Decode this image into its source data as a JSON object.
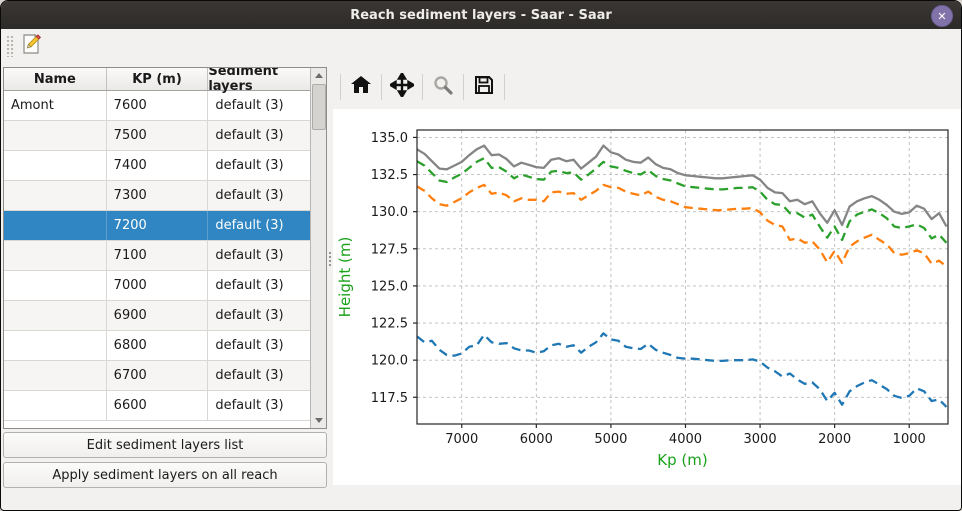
{
  "window": {
    "title": "Reach sediment layers - Saar - Saar",
    "close_glyph": "✕"
  },
  "main_toolbar": {
    "edit_icon": "edit-sediment-document"
  },
  "left_panel": {
    "table": {
      "columns": [
        "Name",
        "KP (m)",
        "Sediment layers"
      ],
      "rows": [
        {
          "name": "Amont",
          "kp": "7600",
          "layers": "default (3)"
        },
        {
          "name": "",
          "kp": "7500",
          "layers": "default (3)"
        },
        {
          "name": "",
          "kp": "7400",
          "layers": "default (3)"
        },
        {
          "name": "",
          "kp": "7300",
          "layers": "default (3)"
        },
        {
          "name": "",
          "kp": "7200",
          "layers": "default (3)"
        },
        {
          "name": "",
          "kp": "7100",
          "layers": "default (3)"
        },
        {
          "name": "",
          "kp": "7000",
          "layers": "default (3)"
        },
        {
          "name": "",
          "kp": "6900",
          "layers": "default (3)"
        },
        {
          "name": "",
          "kp": "6800",
          "layers": "default (3)"
        },
        {
          "name": "",
          "kp": "6700",
          "layers": "default (3)"
        },
        {
          "name": "",
          "kp": "6600",
          "layers": "default (3)"
        }
      ],
      "selected_index": 4
    },
    "buttons": [
      "Edit sediment layers list",
      "Apply sediment layers on all reach"
    ]
  },
  "plot_toolbar": {
    "icons": [
      "home",
      "pan",
      "zoom",
      "save"
    ]
  },
  "chart_data": {
    "type": "line",
    "xlabel": "Kp (m)",
    "ylabel": "Height (m)",
    "axis_label_color": "#1aa21a",
    "tick_color": "#1a1a1a",
    "x_inverted": true,
    "xlim": [
      7600,
      480
    ],
    "ylim": [
      115.7,
      135.5
    ],
    "xticks": [
      7000,
      6000,
      5000,
      4000,
      3000,
      2000,
      1000
    ],
    "yticks": [
      135.0,
      132.5,
      130.0,
      127.5,
      125.0,
      122.5,
      120.0,
      117.5
    ],
    "grid": {
      "on": true,
      "style": "dashed",
      "color": "#bbbbbb"
    },
    "x": [
      7600,
      7500,
      7400,
      7300,
      7200,
      7100,
      7000,
      6900,
      6800,
      6700,
      6600,
      6500,
      6400,
      6300,
      6200,
      6100,
      6000,
      5900,
      5800,
      5700,
      5600,
      5500,
      5400,
      5300,
      5200,
      5100,
      5000,
      4900,
      4800,
      4700,
      4600,
      4500,
      4400,
      4300,
      4200,
      4100,
      4000,
      3900,
      3800,
      3700,
      3600,
      3500,
      3400,
      3300,
      3200,
      3100,
      3000,
      2900,
      2800,
      2700,
      2600,
      2500,
      2400,
      2300,
      2200,
      2100,
      2000,
      1900,
      1800,
      1700,
      1600,
      1500,
      1400,
      1300,
      1200,
      1100,
      1000,
      900,
      800,
      700,
      600,
      500
    ],
    "series": [
      {
        "name": "grey-solid-line",
        "color": "#858585",
        "dash": "solid",
        "values": [
          134.2,
          133.9,
          133.4,
          132.9,
          132.85,
          133.1,
          133.35,
          133.8,
          134.2,
          134.45,
          133.8,
          133.85,
          133.55,
          133.05,
          133.3,
          133.15,
          133.0,
          132.95,
          133.5,
          133.6,
          133.4,
          133.5,
          132.9,
          133.3,
          133.7,
          134.45,
          134.0,
          133.85,
          133.5,
          133.35,
          133.3,
          133.65,
          133.2,
          132.95,
          132.85,
          132.6,
          132.45,
          132.4,
          132.35,
          132.3,
          132.25,
          132.25,
          132.3,
          132.35,
          132.4,
          132.45,
          132.15,
          131.6,
          131.3,
          131.25,
          130.7,
          130.8,
          130.5,
          130.7,
          129.9,
          129.25,
          130.1,
          129.1,
          130.35,
          130.7,
          130.9,
          131.05,
          130.8,
          130.45,
          130.0,
          129.85,
          129.95,
          130.4,
          130.2,
          129.5,
          129.9,
          129.0
        ]
      },
      {
        "name": "green-dashed-line",
        "color": "#2ca02c",
        "dash": "dashed",
        "values": [
          133.4,
          133.1,
          132.6,
          132.1,
          132.0,
          132.3,
          132.55,
          132.95,
          133.35,
          133.6,
          132.95,
          133.0,
          132.7,
          132.25,
          132.5,
          132.35,
          132.2,
          132.15,
          132.7,
          132.75,
          132.6,
          132.65,
          132.15,
          132.5,
          132.9,
          133.35,
          133.05,
          132.95,
          132.75,
          132.6,
          132.5,
          132.8,
          132.4,
          132.2,
          132.1,
          131.9,
          131.7,
          131.65,
          131.6,
          131.55,
          131.5,
          131.5,
          131.55,
          131.6,
          131.6,
          131.65,
          131.35,
          130.8,
          130.5,
          130.45,
          129.9,
          129.9,
          129.6,
          129.8,
          129.0,
          128.25,
          129.0,
          128.1,
          129.35,
          129.8,
          130.0,
          130.15,
          129.9,
          129.55,
          129.0,
          128.9,
          129.0,
          129.15,
          128.9,
          128.2,
          128.45,
          127.9
        ]
      },
      {
        "name": "orange-dashed-line",
        "color": "#ff7f0e",
        "dash": "dashed",
        "values": [
          131.7,
          131.4,
          130.9,
          130.5,
          130.4,
          130.65,
          130.9,
          131.3,
          131.6,
          131.8,
          131.2,
          131.3,
          131.1,
          130.7,
          130.9,
          130.8,
          130.8,
          130.7,
          131.3,
          131.35,
          131.2,
          131.25,
          130.8,
          131.1,
          131.4,
          131.8,
          131.65,
          131.6,
          131.35,
          131.2,
          131.1,
          131.35,
          131.0,
          130.8,
          130.7,
          130.5,
          130.3,
          130.25,
          130.2,
          130.15,
          130.1,
          130.1,
          130.15,
          130.2,
          130.2,
          130.25,
          129.95,
          129.4,
          129.1,
          129.0,
          128.1,
          128.2,
          127.9,
          128.0,
          127.45,
          126.6,
          127.35,
          126.55,
          127.65,
          128.0,
          128.25,
          128.45,
          128.1,
          127.8,
          127.2,
          127.1,
          127.2,
          127.4,
          127.2,
          126.5,
          126.7,
          126.3
        ]
      },
      {
        "name": "blue-dashed-line",
        "color": "#1f77b4",
        "dash": "dashed",
        "values": [
          121.6,
          121.2,
          121.3,
          120.7,
          120.35,
          120.3,
          120.45,
          120.9,
          121.0,
          121.7,
          121.2,
          121.1,
          121.15,
          120.8,
          120.65,
          120.65,
          120.5,
          120.6,
          121.0,
          121.1,
          120.9,
          121.0,
          120.5,
          120.9,
          121.2,
          121.8,
          121.4,
          121.3,
          120.9,
          120.8,
          120.75,
          121.1,
          120.7,
          120.5,
          120.35,
          120.15,
          120.1,
          120.1,
          120.05,
          120.0,
          119.95,
          119.95,
          120.0,
          120.0,
          120.0,
          120.05,
          119.9,
          119.5,
          119.25,
          118.9,
          119.1,
          118.7,
          118.4,
          118.5,
          118.05,
          117.25,
          117.8,
          117.0,
          117.9,
          118.25,
          118.5,
          118.65,
          118.35,
          118.05,
          117.6,
          117.45,
          117.6,
          118.1,
          117.9,
          117.25,
          117.35,
          116.85
        ]
      }
    ]
  }
}
